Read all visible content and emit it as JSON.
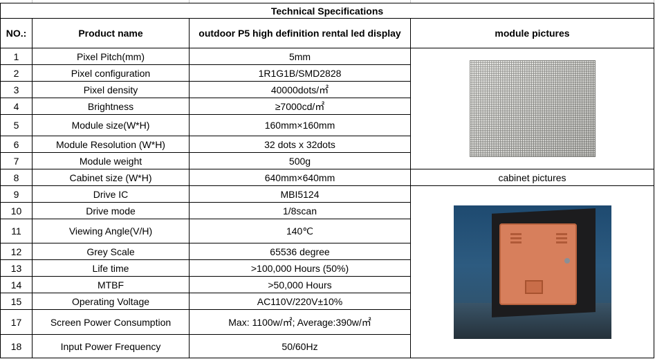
{
  "table": {
    "title": "Technical  Specifications",
    "headers": {
      "no": "NO.:",
      "product_name": "Product name",
      "product_model": "outdoor P5 high definition rental led display",
      "module_pictures": "module pictures"
    },
    "cabinet_pictures_label": "cabinet  pictures",
    "rows": [
      {
        "no": "1",
        "name": "Pixel Pitch(mm)",
        "value": "5mm"
      },
      {
        "no": "2",
        "name": "Pixel configuration",
        "value": "1R1G1B/SMD2828"
      },
      {
        "no": "3",
        "name": "Pixel density",
        "value": "40000dots/㎡"
      },
      {
        "no": "4",
        "name": "Brightness",
        "value": "≥7000cd/㎡"
      },
      {
        "no": "5",
        "name": "Module size(W*H)",
        "value": "160mm×160mm"
      },
      {
        "no": "6",
        "name": "Module Resolution (W*H)",
        "value": "32 dots x 32dots"
      },
      {
        "no": "7",
        "name": "Module weight",
        "value": "500g"
      },
      {
        "no": "8",
        "name": "Cabinet size (W*H)",
        "value": "640mm×640mm"
      },
      {
        "no": "9",
        "name": "Drive IC",
        "value": "MBI5124"
      },
      {
        "no": "10",
        "name": "Drive mode",
        "value": "1/8scan"
      },
      {
        "no": "11",
        "name": "Viewing Angle(V/H)",
        "value": "140℃"
      },
      {
        "no": "12",
        "name": "Grey Scale",
        "value": "65536 degree"
      },
      {
        "no": "13",
        "name": "Life time",
        "value": ">100,000 Hours (50%)"
      },
      {
        "no": "14",
        "name": "MTBF",
        "value": ">50,000 Hours"
      },
      {
        "no": "15",
        "name": "Operating Voltage",
        "value": "AC110V/220V±10%"
      },
      {
        "no": "17",
        "name": "Screen Power Consumption",
        "value": "Max: 1100w/㎡; Average:390w/㎡"
      },
      {
        "no": "18",
        "name": "Input Power Frequency",
        "value": "50/60Hz"
      }
    ]
  },
  "colors": {
    "border": "#000000",
    "background": "#ffffff",
    "cabinet_door": "#d77f5c",
    "cabinet_backdrop": "#2d5b80"
  }
}
